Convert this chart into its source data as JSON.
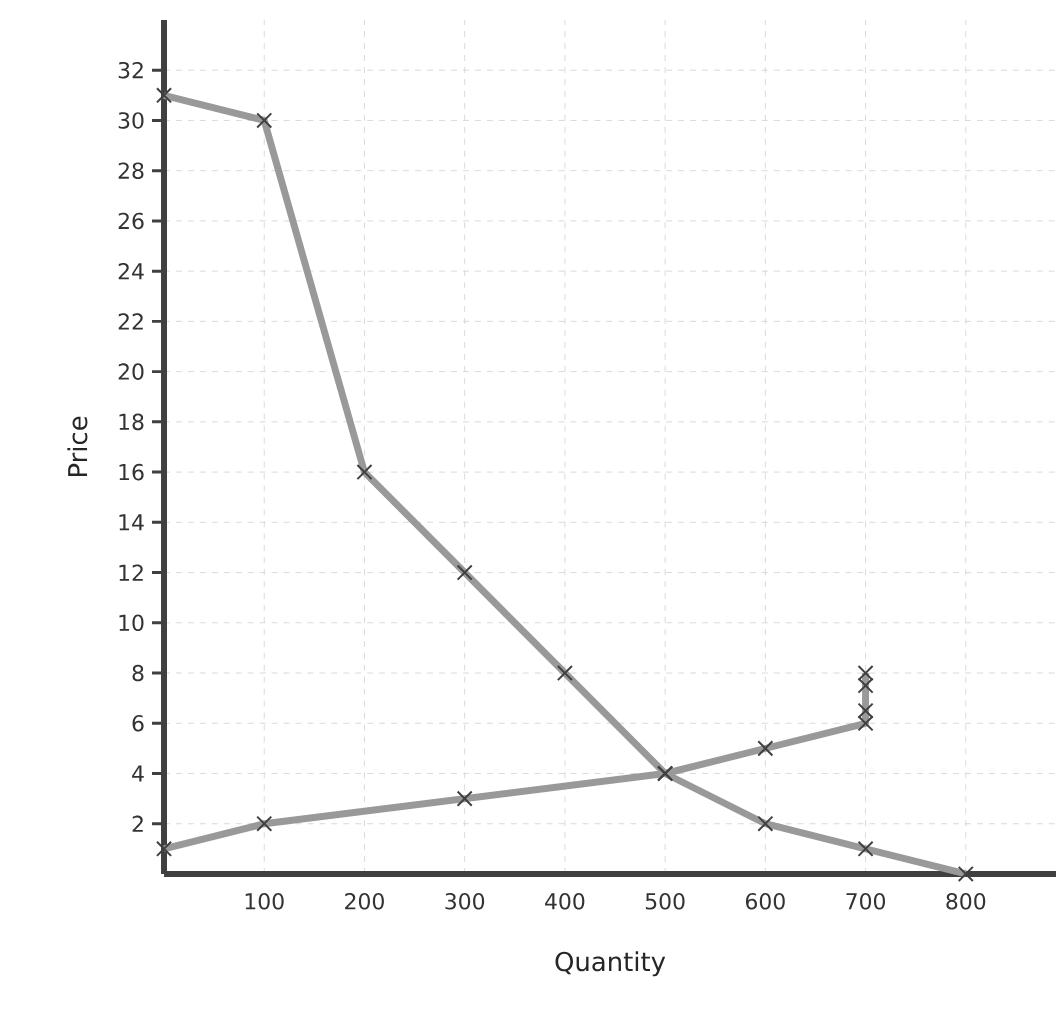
{
  "chart_data": {
    "type": "line",
    "xlabel": "Quantity",
    "ylabel": "Price",
    "series": [
      {
        "color": "#999999",
        "x": [
          0,
          100,
          200,
          300,
          400,
          500,
          600,
          700,
          800
        ],
        "values": [
          31,
          30,
          16,
          12,
          8,
          4,
          2,
          1,
          0
        ]
      },
      {
        "color": "#999999",
        "x": [
          0,
          100,
          300,
          500,
          600,
          700,
          700,
          700,
          700
        ],
        "values": [
          1,
          2,
          3,
          4,
          5,
          6,
          6.5,
          7.5,
          8
        ]
      }
    ],
    "xlim": [
      0,
      890
    ],
    "ylim": [
      0,
      34
    ],
    "xticks": [
      100,
      200,
      300,
      400,
      500,
      600,
      700,
      800
    ],
    "yticks": [
      2,
      4,
      6,
      8,
      10,
      12,
      14,
      16,
      18,
      20,
      22,
      24,
      26,
      28,
      30,
      32
    ],
    "grid": true,
    "marker": "cross",
    "line_style": "solid"
  }
}
